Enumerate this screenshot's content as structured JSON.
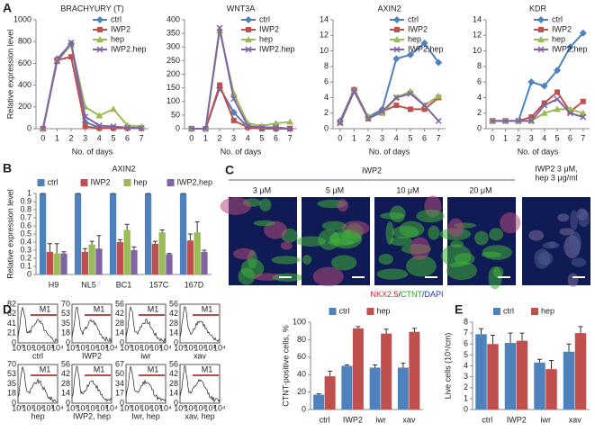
{
  "panel_labels": [
    "A",
    "B",
    "C",
    "D",
    "E"
  ],
  "micrographs": {
    "group_label": "IWP2",
    "doses": [
      "3 μM",
      "5 μM",
      "10 μM",
      "20 μM"
    ],
    "combo_label": [
      "IWP2 3 μM,",
      "hep 3 μg/ml"
    ],
    "stain": [
      "NKX2.5",
      "/",
      "CTNT",
      "/",
      "DAPI"
    ]
  },
  "flow": {
    "marker": "M1",
    "xticks": [
      "10⁰",
      "10¹",
      "10²",
      "10³",
      "10⁴"
    ],
    "plots": [
      {
        "label": "ctrl",
        "yticks": [
          0,
          21,
          41,
          62,
          82
        ]
      },
      {
        "label": "IWP2",
        "yticks": [
          0,
          18,
          35,
          53,
          70
        ]
      },
      {
        "label": "iwr",
        "yticks": [
          0,
          14,
          28,
          42,
          56
        ]
      },
      {
        "label": "xav",
        "yticks": [
          0,
          14,
          28,
          42,
          56
        ]
      },
      {
        "label": "hep",
        "yticks": [
          0,
          18,
          35,
          53,
          70
        ]
      },
      {
        "label": "IWP2, hep",
        "yticks": [
          0,
          14,
          28,
          42,
          56
        ]
      },
      {
        "label": "Iwr, hep",
        "yticks": [
          0,
          17,
          34,
          50,
          67
        ]
      },
      {
        "label": "xav, hep",
        "yticks": [
          0,
          14,
          28,
          42,
          56
        ]
      }
    ]
  },
  "chart_data": [
    {
      "type": "line",
      "title": "BRACHYURY (T)",
      "ylabel": "Relative expression level",
      "xlabel": "No. of days",
      "x": [
        0,
        1,
        2,
        3,
        4,
        5,
        6,
        7
      ],
      "xlim": [
        -0.5,
        7.5
      ],
      "xticks": [
        0,
        1,
        2,
        3,
        4,
        5,
        6,
        7
      ],
      "ylim": [
        0,
        1000
      ],
      "yticks": [
        0,
        200,
        400,
        600,
        800,
        1000
      ],
      "series": [
        {
          "name": "ctrl",
          "color": "#4f81bd",
          "marker": "diamond",
          "values": [
            0,
            640,
            780,
            60,
            10,
            5,
            5,
            5
          ]
        },
        {
          "name": "IWP2",
          "color": "#c0504d",
          "marker": "square",
          "values": [
            0,
            630,
            660,
            20,
            5,
            5,
            5,
            5
          ]
        },
        {
          "name": "hep",
          "color": "#9bbb59",
          "marker": "triangle",
          "values": [
            0,
            620,
            770,
            200,
            120,
            180,
            30,
            20
          ]
        },
        {
          "name": "IWP2.hep",
          "color": "#8064a2",
          "marker": "x",
          "values": [
            0,
            620,
            790,
            110,
            30,
            20,
            10,
            5
          ]
        }
      ]
    },
    {
      "type": "line",
      "title": "WNT3A",
      "xlabel": "No. of days",
      "x": [
        0,
        1,
        2,
        3,
        4,
        5,
        6,
        7
      ],
      "xlim": [
        -0.5,
        7.5
      ],
      "xticks": [
        0,
        1,
        2,
        3,
        4,
        5,
        6,
        7
      ],
      "ylim": [
        0,
        400
      ],
      "yticks": [
        0,
        50,
        100,
        150,
        200,
        250,
        300,
        350,
        400
      ],
      "series": [
        {
          "name": "ctrl",
          "color": "#4f81bd",
          "marker": "diamond",
          "values": [
            0,
            0,
            150,
            60,
            5,
            5,
            0,
            0
          ]
        },
        {
          "name": "IWP2",
          "color": "#c0504d",
          "marker": "square",
          "values": [
            0,
            0,
            160,
            30,
            5,
            0,
            0,
            0
          ]
        },
        {
          "name": "hep",
          "color": "#9bbb59",
          "marker": "triangle",
          "values": [
            0,
            0,
            360,
            130,
            20,
            10,
            20,
            25
          ]
        },
        {
          "name": "IWP2.hep",
          "color": "#8064a2",
          "marker": "x",
          "values": [
            0,
            0,
            370,
            110,
            10,
            5,
            5,
            0
          ]
        }
      ]
    },
    {
      "type": "line",
      "title": "AXIN2",
      "xlabel": "No. of days",
      "x": [
        0,
        1,
        2,
        3,
        4,
        5,
        6,
        7
      ],
      "xlim": [
        -0.5,
        7.5
      ],
      "xticks": [
        0,
        1,
        2,
        3,
        4,
        5,
        6,
        7
      ],
      "ylim": [
        0,
        14
      ],
      "yticks": [
        0,
        2,
        4,
        6,
        8,
        10,
        12,
        14
      ],
      "series": [
        {
          "name": "ctrl",
          "color": "#4f81bd",
          "marker": "diamond",
          "values": [
            1,
            5,
            1.5,
            2.5,
            9,
            9.5,
            11,
            8.5
          ]
        },
        {
          "name": "IWP2",
          "color": "#c0504d",
          "marker": "square",
          "values": [
            0.8,
            5,
            1.3,
            2.2,
            3,
            2.5,
            2.5,
            4
          ]
        },
        {
          "name": "hep",
          "color": "#9bbb59",
          "marker": "triangle",
          "values": [
            0.8,
            4.8,
            1.5,
            2,
            4,
            4.8,
            3,
            4.2
          ]
        },
        {
          "name": "IWP2,hep",
          "color": "#8064a2",
          "marker": "x",
          "values": [
            0.7,
            4.8,
            1.3,
            2.2,
            4,
            4.5,
            3,
            1
          ]
        }
      ]
    },
    {
      "type": "line",
      "title": "KDR",
      "xlabel": "No. of days",
      "x": [
        0,
        1,
        2,
        3,
        4,
        5,
        6,
        7
      ],
      "xlim": [
        -0.5,
        7.5
      ],
      "xticks": [
        0,
        1,
        2,
        3,
        4,
        5,
        6,
        7
      ],
      "ylim": [
        0,
        14
      ],
      "yticks": [
        0,
        2,
        4,
        6,
        8,
        10,
        12,
        14
      ],
      "series": [
        {
          "name": "ctrl",
          "color": "#4f81bd",
          "marker": "diamond",
          "values": [
            1,
            1,
            1,
            6,
            5.5,
            7.5,
            10.5,
            12.3
          ]
        },
        {
          "name": "IWP2",
          "color": "#c0504d",
          "marker": "square",
          "values": [
            1,
            1,
            1,
            1.5,
            3.3,
            4.7,
            2.2,
            3.5
          ]
        },
        {
          "name": "hep",
          "color": "#9bbb59",
          "marker": "triangle",
          "values": [
            1,
            1,
            1,
            1,
            2,
            2.5,
            2.5,
            2
          ]
        },
        {
          "name": "IWP2,hep",
          "color": "#8064a2",
          "marker": "x",
          "values": [
            1,
            1,
            1,
            1,
            3,
            3.8,
            2,
            1.5
          ]
        }
      ]
    },
    {
      "type": "bar",
      "title": "AXIN2",
      "ylabel": "Relative expression level",
      "categories": [
        "H9",
        "NL5",
        "BC1",
        "157C",
        "167D"
      ],
      "ylim": [
        0,
        1
      ],
      "yticks": [
        0,
        0.1,
        0.2,
        0.3,
        0.4,
        0.5,
        0.6,
        0.7,
        0.8,
        0.9,
        1
      ],
      "series": [
        {
          "name": "ctrl",
          "color": "#4f81bd",
          "values": [
            1,
            1,
            1,
            1,
            1
          ],
          "errors": [
            0,
            0,
            0,
            0,
            0
          ]
        },
        {
          "name": "IWP2",
          "color": "#c0504d",
          "values": [
            0.28,
            0.28,
            0.4,
            0.38,
            0.42
          ],
          "errors": [
            0.1,
            0.04,
            0.03,
            0.03,
            0.08
          ]
        },
        {
          "name": "hep",
          "color": "#9bbb59",
          "values": [
            0.26,
            0.37,
            0.55,
            0.52,
            0.52
          ],
          "errors": [
            0.12,
            0.04,
            0.07,
            0.03,
            0.13
          ]
        },
        {
          "name": "IWP2,hep",
          "color": "#8064a2",
          "values": [
            0.26,
            0.32,
            0.3,
            0.25,
            0.28
          ],
          "errors": [
            0.02,
            0.16,
            0.04,
            0.01,
            0.02
          ]
        }
      ]
    },
    {
      "type": "bar",
      "ylabel": "CTNT-positive cells, %",
      "categories": [
        "ctrl",
        "IWP2",
        "iwr",
        "xav"
      ],
      "ylim": [
        0,
        100
      ],
      "yticks": [
        0,
        20,
        40,
        60,
        80,
        100
      ],
      "series": [
        {
          "name": "ctrl",
          "color": "#4f81bd",
          "values": [
            17,
            50,
            48,
            48
          ],
          "errors": [
            1,
            1,
            3,
            5
          ]
        },
        {
          "name": "hep",
          "color": "#c0504d",
          "values": [
            38,
            93,
            87,
            89
          ],
          "errors": [
            6,
            2,
            5,
            4
          ]
        }
      ]
    },
    {
      "type": "bar",
      "ylabel": "Live cells (10⁵/cm)",
      "categories": [
        "ctrl",
        "IWP2",
        "iwr",
        "xav"
      ],
      "ylim": [
        0,
        8
      ],
      "yticks": [
        0,
        1,
        2,
        3,
        4,
        5,
        6,
        7,
        8
      ],
      "series": [
        {
          "name": "ctrl",
          "color": "#4f81bd",
          "values": [
            6.9,
            6.1,
            4.3,
            5.3
          ],
          "errors": [
            0.5,
            0.9,
            0.3,
            0.7
          ]
        },
        {
          "name": "hep",
          "color": "#c0504d",
          "values": [
            6.0,
            6.3,
            3.7,
            7.0
          ],
          "errors": [
            0.8,
            0.7,
            0.8,
            0.6
          ]
        }
      ]
    }
  ]
}
